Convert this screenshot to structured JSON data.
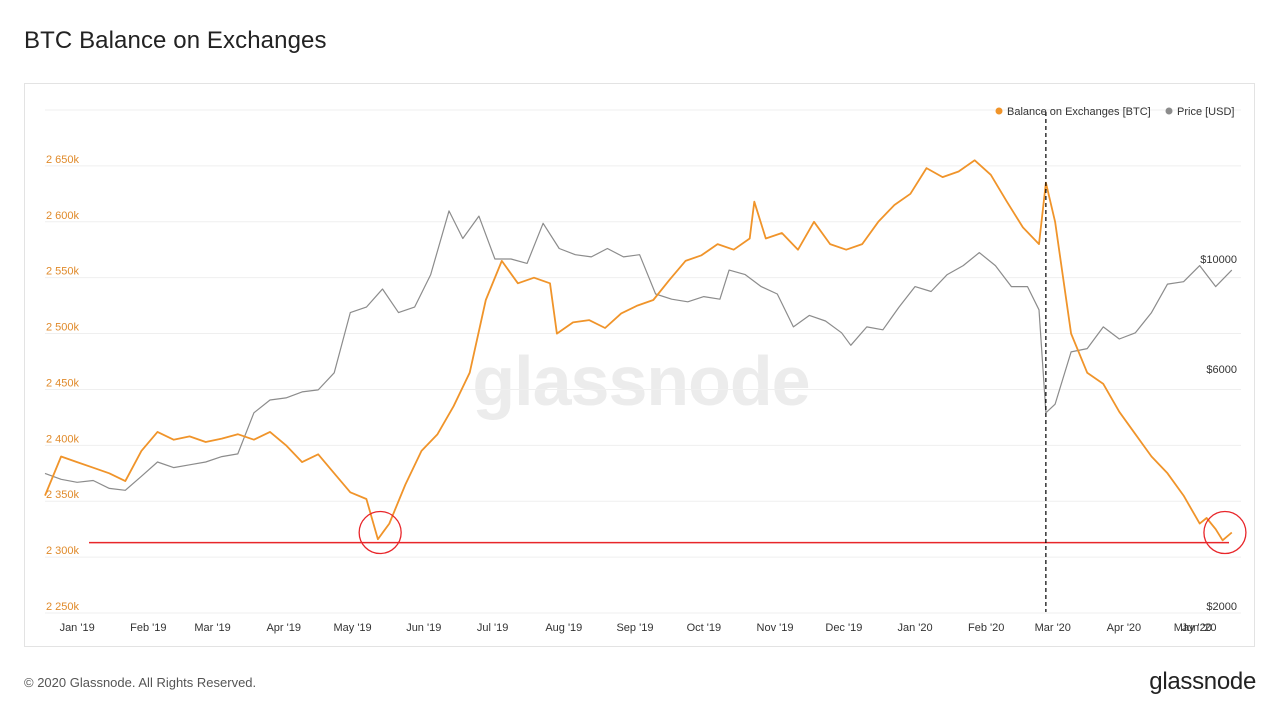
{
  "page": {
    "title": "BTC Balance on Exchanges",
    "footer_copyright": "© 2020 Glassnode. All Rights Reserved.",
    "brand": "glassnode",
    "watermark": "glassnode"
  },
  "colors": {
    "balance": "#f0942a",
    "price": "#8c8c8c",
    "support_line": "#e8262a",
    "highlight_circle": "#e8262a",
    "event_line": "#000000",
    "grid": "#efefef"
  },
  "chart_data": {
    "type": "line",
    "title": "BTC Balance on Exchanges",
    "legend": {
      "placement": "top-right",
      "items": [
        "Balance on Exchanges [BTC]",
        "Price [USD]"
      ]
    },
    "x_axis": {
      "ticks": [
        "Jan '19",
        "Feb '19",
        "Mar '19",
        "Apr '19",
        "May '19",
        "Jun '19",
        "Jul '19",
        "Aug '19",
        "Sep '19",
        "Oct '19",
        "Nov '19",
        "Dec '19",
        "Jan '20",
        "Feb '20",
        "Mar '20",
        "Apr '20",
        "May '20",
        "Jun '20"
      ],
      "range": [
        "2019-01-01",
        "2020-06-05"
      ]
    },
    "y_left": {
      "label": "",
      "unit": "BTC",
      "range": [
        2250000,
        2700000
      ],
      "ticks": [
        2250000,
        2300000,
        2350000,
        2400000,
        2450000,
        2500000,
        2550000,
        2600000,
        2650000
      ],
      "tick_labels": [
        "2 250k",
        "2 300k",
        "2 350k",
        "2 400k",
        "2 450k",
        "2 500k",
        "2 550k",
        "2 600k",
        "2 650k"
      ]
    },
    "y_right": {
      "label": "",
      "unit": "USD",
      "scale": "log",
      "ticks": [
        2000,
        6000,
        10000
      ],
      "tick_labels": [
        "$2000",
        "$6000",
        "$10000"
      ]
    },
    "grid": true,
    "series": [
      {
        "name": "Balance on Exchanges [BTC]",
        "axis": "left",
        "x": [
          "2019-01-01",
          "2019-01-08",
          "2019-01-15",
          "2019-01-22",
          "2019-01-29",
          "2019-02-05",
          "2019-02-12",
          "2019-02-19",
          "2019-02-26",
          "2019-03-05",
          "2019-03-12",
          "2019-03-19",
          "2019-03-26",
          "2019-04-02",
          "2019-04-09",
          "2019-04-16",
          "2019-04-23",
          "2019-04-30",
          "2019-05-07",
          "2019-05-14",
          "2019-05-21",
          "2019-05-26",
          "2019-05-31",
          "2019-06-07",
          "2019-06-14",
          "2019-06-21",
          "2019-06-28",
          "2019-07-05",
          "2019-07-12",
          "2019-07-19",
          "2019-07-26",
          "2019-08-02",
          "2019-08-09",
          "2019-08-12",
          "2019-08-19",
          "2019-08-26",
          "2019-09-02",
          "2019-09-09",
          "2019-09-16",
          "2019-09-23",
          "2019-09-30",
          "2019-10-07",
          "2019-10-14",
          "2019-10-21",
          "2019-10-28",
          "2019-11-04",
          "2019-11-06",
          "2019-11-11",
          "2019-11-18",
          "2019-11-25",
          "2019-12-02",
          "2019-12-09",
          "2019-12-16",
          "2019-12-23",
          "2019-12-30",
          "2020-01-06",
          "2020-01-13",
          "2020-01-20",
          "2020-01-27",
          "2020-02-03",
          "2020-02-10",
          "2020-02-17",
          "2020-02-24",
          "2020-03-02",
          "2020-03-09",
          "2020-03-12",
          "2020-03-16",
          "2020-03-23",
          "2020-03-30",
          "2020-04-06",
          "2020-04-13",
          "2020-04-20",
          "2020-04-27",
          "2020-05-04",
          "2020-05-11",
          "2020-05-18",
          "2020-05-21",
          "2020-05-25",
          "2020-05-28",
          "2020-06-01"
        ],
        "values": [
          2355000,
          2390000,
          2385000,
          2380000,
          2375000,
          2368000,
          2395000,
          2412000,
          2405000,
          2408000,
          2403000,
          2406000,
          2410000,
          2405000,
          2412000,
          2400000,
          2385000,
          2392000,
          2375000,
          2358000,
          2352000,
          2316000,
          2330000,
          2365000,
          2395000,
          2410000,
          2435000,
          2465000,
          2530000,
          2565000,
          2545000,
          2550000,
          2545000,
          2500000,
          2510000,
          2512000,
          2505000,
          2518000,
          2525000,
          2530000,
          2548000,
          2565000,
          2570000,
          2580000,
          2575000,
          2585000,
          2618000,
          2585000,
          2590000,
          2575000,
          2600000,
          2580000,
          2575000,
          2580000,
          2600000,
          2615000,
          2625000,
          2648000,
          2640000,
          2645000,
          2655000,
          2642000,
          2618000,
          2595000,
          2580000,
          2635000,
          2600000,
          2500000,
          2465000,
          2455000,
          2430000,
          2410000,
          2390000,
          2375000,
          2355000,
          2330000,
          2335000,
          2325000,
          2315000,
          2322000
        ]
      },
      {
        "name": "Price [USD]",
        "axis": "right",
        "x": [
          "2019-01-01",
          "2019-01-08",
          "2019-01-15",
          "2019-01-22",
          "2019-01-29",
          "2019-02-05",
          "2019-02-12",
          "2019-02-19",
          "2019-02-26",
          "2019-03-05",
          "2019-03-12",
          "2019-03-19",
          "2019-03-26",
          "2019-04-02",
          "2019-04-09",
          "2019-04-16",
          "2019-04-23",
          "2019-04-30",
          "2019-05-07",
          "2019-05-14",
          "2019-05-21",
          "2019-05-28",
          "2019-06-04",
          "2019-06-11",
          "2019-06-18",
          "2019-06-26",
          "2019-07-02",
          "2019-07-09",
          "2019-07-16",
          "2019-07-23",
          "2019-07-30",
          "2019-08-06",
          "2019-08-13",
          "2019-08-20",
          "2019-08-27",
          "2019-09-03",
          "2019-09-10",
          "2019-09-17",
          "2019-09-24",
          "2019-10-01",
          "2019-10-08",
          "2019-10-15",
          "2019-10-22",
          "2019-10-26",
          "2019-11-02",
          "2019-11-09",
          "2019-11-16",
          "2019-11-23",
          "2019-11-30",
          "2019-12-07",
          "2019-12-14",
          "2019-12-18",
          "2019-12-25",
          "2020-01-01",
          "2020-01-08",
          "2020-01-15",
          "2020-01-22",
          "2020-01-29",
          "2020-02-05",
          "2020-02-12",
          "2020-02-19",
          "2020-02-26",
          "2020-03-04",
          "2020-03-09",
          "2020-03-12",
          "2020-03-16",
          "2020-03-23",
          "2020-03-30",
          "2020-04-06",
          "2020-04-13",
          "2020-04-20",
          "2020-04-27",
          "2020-05-04",
          "2020-05-11",
          "2020-05-18",
          "2020-05-25",
          "2020-06-01"
        ],
        "values": [
          3700,
          3600,
          3550,
          3580,
          3450,
          3420,
          3650,
          3900,
          3800,
          3850,
          3900,
          4000,
          4050,
          4900,
          5200,
          5250,
          5400,
          5450,
          5900,
          7800,
          8000,
          8700,
          7800,
          8000,
          9300,
          12500,
          11000,
          12200,
          10000,
          10000,
          9800,
          11800,
          10500,
          10200,
          10100,
          10500,
          10100,
          10200,
          8500,
          8300,
          8200,
          8400,
          8300,
          9500,
          9300,
          8800,
          8500,
          7300,
          7700,
          7500,
          7100,
          6700,
          7300,
          7200,
          8000,
          8800,
          8600,
          9300,
          9700,
          10300,
          9700,
          8800,
          8800,
          7900,
          4900,
          5100,
          6500,
          6600,
          7300,
          6900,
          7100,
          7800,
          8900,
          9000,
          9700,
          8800,
          9500
        ]
      }
    ],
    "annotations": {
      "support_level": 2313000,
      "event_line_date": "2020-03-12",
      "highlight_circles": [
        {
          "x": "2019-05-27",
          "y": 2322000
        },
        {
          "x": "2020-05-29",
          "y": 2322000
        }
      ]
    }
  }
}
